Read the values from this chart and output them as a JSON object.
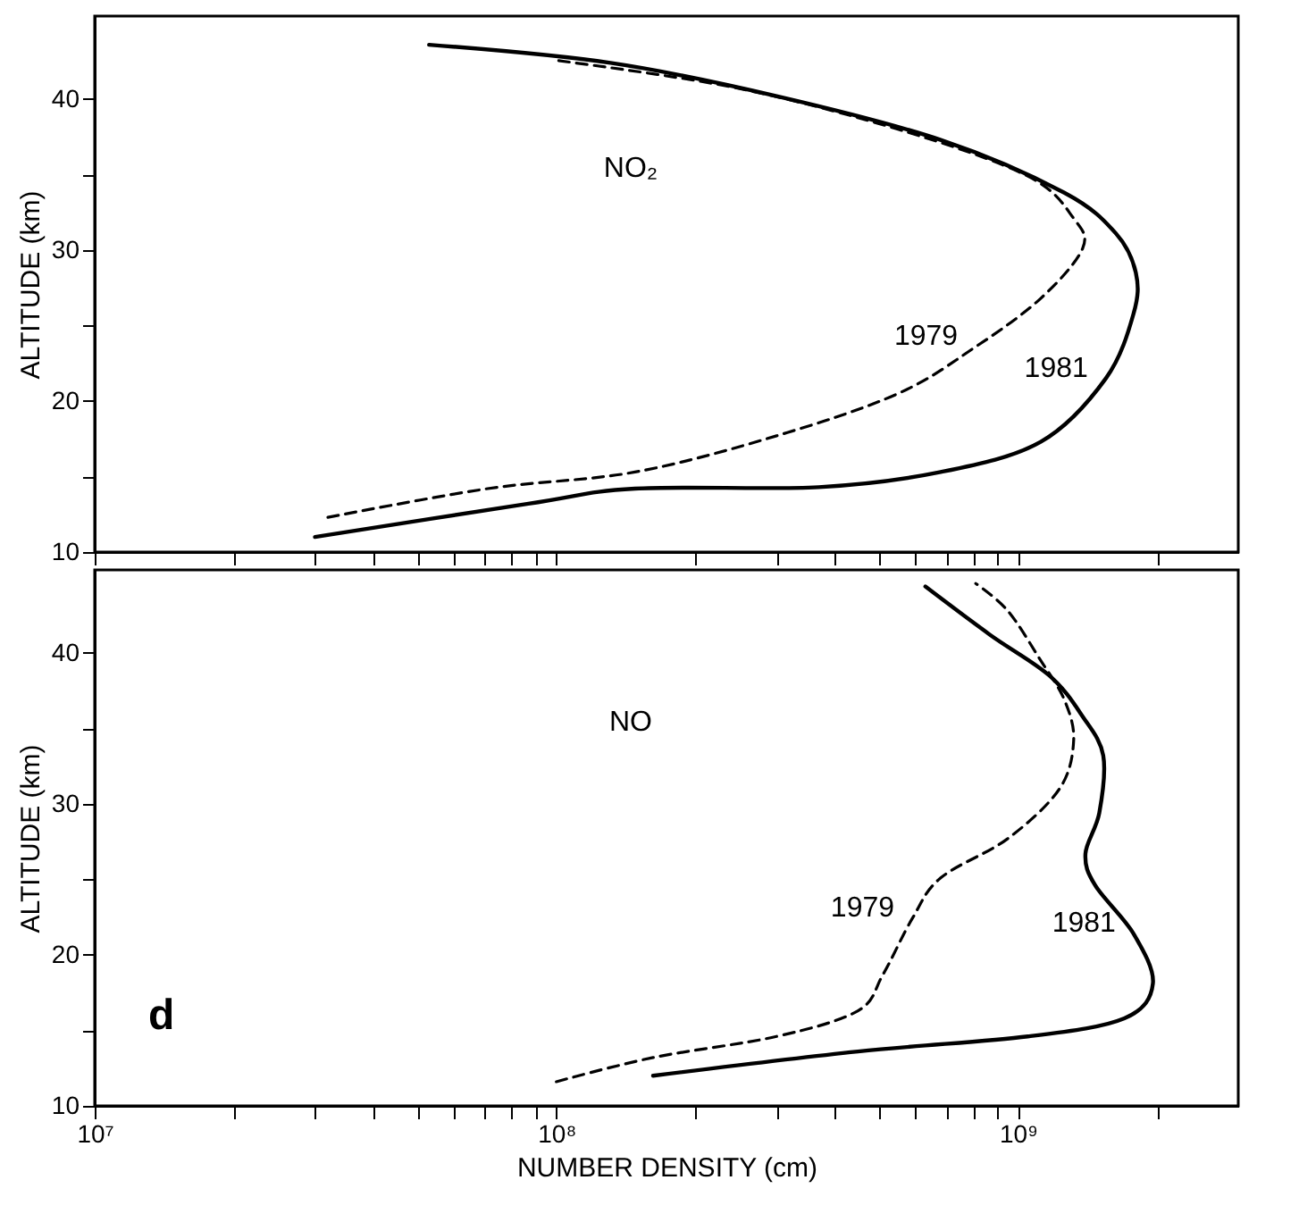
{
  "chart_data": [
    {
      "type": "line",
      "xlim": [
        10000000,
        3000000000
      ],
      "ylim": [
        10,
        45.5
      ],
      "log": "x",
      "tick_labels": "y",
      "ylabel": "ALTITUDE (km)",
      "xticks": [
        {
          "value": 10000000,
          "label": null
        },
        {
          "value": 20000000,
          "label": null
        },
        {
          "value": 30000000,
          "label": null
        },
        {
          "value": 40000000,
          "label": null
        },
        {
          "value": 50000000,
          "label": null
        },
        {
          "value": 60000000,
          "label": null
        },
        {
          "value": 70000000,
          "label": null
        },
        {
          "value": 80000000,
          "label": null
        },
        {
          "value": 90000000,
          "label": null
        },
        {
          "value": 100000000,
          "label": null
        },
        {
          "value": 200000000,
          "label": null
        },
        {
          "value": 300000000,
          "label": null
        },
        {
          "value": 400000000,
          "label": null
        },
        {
          "value": 500000000,
          "label": null
        },
        {
          "value": 600000000,
          "label": null
        },
        {
          "value": 700000000,
          "label": null
        },
        {
          "value": 800000000,
          "label": null
        },
        {
          "value": 900000000,
          "label": null
        },
        {
          "value": 1000000000,
          "label": null
        },
        {
          "value": 2000000000,
          "label": null
        }
      ],
      "yticks": [
        10,
        {
          "value": 15,
          "label": null
        },
        20,
        {
          "value": 25,
          "label": null
        },
        30,
        {
          "value": 35,
          "label": null
        },
        40
      ],
      "series": [
        {
          "name": "1981",
          "color": "#000000",
          "line_style": "solid",
          "x": [
            30000000,
            87000000,
            148000000,
            370000000,
            680000000,
            1120000000,
            1550000000,
            1780000000,
            1800000000,
            1630000000,
            1260000000,
            680000000,
            300000000,
            131000000,
            53000000
          ],
          "values": [
            11.0,
            13.2,
            14.2,
            14.3,
            15.3,
            17.3,
            21.5,
            25.8,
            28.5,
            31.1,
            33.8,
            37.3,
            40.2,
            42.4,
            43.6
          ]
        },
        {
          "name": "1979",
          "color": "#000000",
          "line_style": "dashed",
          "x": [
            32000000,
            71000000,
            148000000,
            300000000,
            550000000,
            810000000,
            1120000000,
            1380000000,
            1320000000,
            1050000000,
            550000000,
            240000000,
            98000000
          ],
          "values": [
            12.3,
            14.2,
            15.3,
            17.7,
            20.5,
            23.6,
            26.8,
            30.1,
            32.1,
            34.9,
            38.0,
            40.8,
            42.6
          ]
        }
      ],
      "annotations": [
        "NO₂"
      ]
    },
    {
      "type": "line",
      "xlim": [
        10000000,
        3000000000
      ],
      "ylim": [
        10,
        45.5
      ],
      "log": "x",
      "ylabel": "ALTITUDE (km)",
      "xlabel": "NUMBER DENSITY (cm)",
      "xticks": [
        {
          "value": 10000000,
          "label": "10⁷"
        },
        {
          "value": 20000000,
          "label": null
        },
        {
          "value": 30000000,
          "label": null
        },
        {
          "value": 40000000,
          "label": null
        },
        {
          "value": 50000000,
          "label": null
        },
        {
          "value": 60000000,
          "label": null
        },
        {
          "value": 70000000,
          "label": null
        },
        {
          "value": 80000000,
          "label": null
        },
        {
          "value": 90000000,
          "label": null
        },
        {
          "value": 100000000,
          "label": "10⁸"
        },
        {
          "value": 200000000,
          "label": null
        },
        {
          "value": 300000000,
          "label": null
        },
        {
          "value": 400000000,
          "label": null
        },
        {
          "value": 500000000,
          "label": null
        },
        {
          "value": 600000000,
          "label": null
        },
        {
          "value": 700000000,
          "label": null
        },
        {
          "value": 800000000,
          "label": null
        },
        {
          "value": 900000000,
          "label": null
        },
        {
          "value": 1000000000,
          "label": "10⁹"
        },
        {
          "value": 2000000000,
          "label": null
        }
      ],
      "yticks": [
        10,
        {
          "value": 15,
          "label": null
        },
        20,
        {
          "value": 25,
          "label": null
        },
        30,
        {
          "value": 35,
          "label": null
        },
        40
      ],
      "series": [
        {
          "name": "1981",
          "color": "#000000",
          "line_style": "solid",
          "x": [
            162000000,
            450000000,
            1050000000,
            1700000000,
            1960000000,
            1780000000,
            1470000000,
            1400000000,
            1500000000,
            1530000000,
            1380000000,
            1170000000,
            870000000,
            630000000
          ],
          "values": [
            12.0,
            13.6,
            14.6,
            15.8,
            18.1,
            21.4,
            24.6,
            26.7,
            29.4,
            33.2,
            35.8,
            38.5,
            41.2,
            44.4
          ]
        },
        {
          "name": "1979",
          "color": "#000000",
          "line_style": "dashed",
          "x": [
            100000000,
            162000000,
            300000000,
            450000000,
            510000000,
            590000000,
            680000000,
            950000000,
            1230000000,
            1320000000,
            1260000000,
            1120000000,
            950000000,
            810000000
          ],
          "values": [
            11.6,
            13.2,
            14.6,
            16.3,
            18.7,
            22.4,
            25.1,
            27.7,
            31.0,
            34.2,
            36.9,
            39.5,
            42.8,
            44.6
          ]
        }
      ],
      "annotations": [
        "NO",
        "d"
      ]
    }
  ]
}
